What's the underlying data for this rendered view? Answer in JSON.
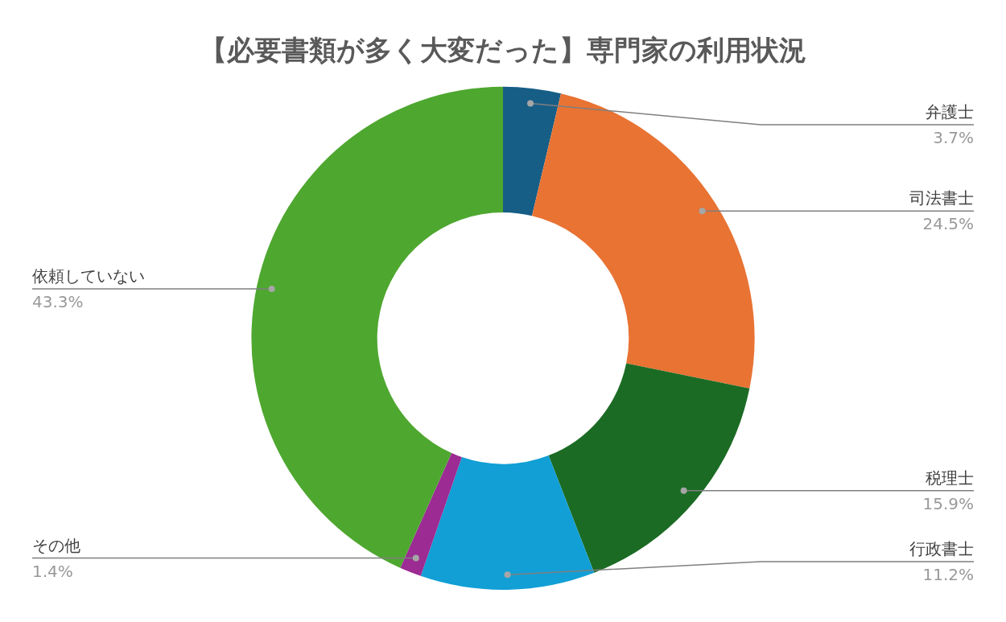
{
  "chart_data": {
    "type": "donut",
    "title": "【必要書類が多く大変だった】専門家の利用状況",
    "categories": [
      "弁護士",
      "司法書士",
      "税理士",
      "行政書士",
      "その他",
      "依頼していない"
    ],
    "values": [
      3.7,
      24.5,
      15.9,
      11.2,
      1.4,
      43.3
    ],
    "value_labels": [
      "3.7%",
      "24.5%",
      "15.9%",
      "11.2%",
      "1.4%",
      "43.3%"
    ],
    "colors": [
      "#175e86",
      "#e87333",
      "#1b6b24",
      "#119fd6",
      "#9c2b93",
      "#4ea72f"
    ],
    "legend": false
  }
}
